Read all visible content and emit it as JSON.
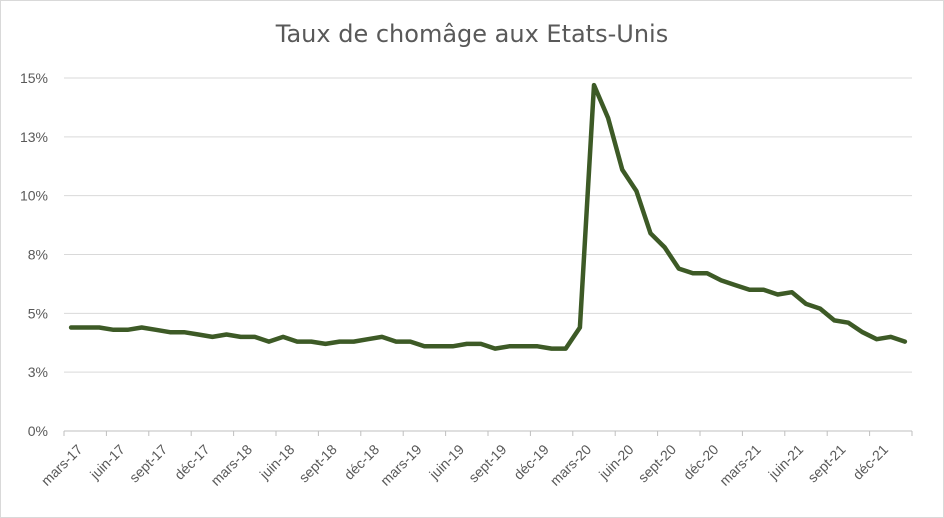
{
  "chart_data": {
    "type": "line",
    "title": "Taux de chomâge aux Etats-Unis",
    "xlabel": "",
    "ylabel": "",
    "ylim": [
      0,
      15
    ],
    "y_ticks": [
      "0%",
      "3%",
      "5%",
      "8%",
      "10%",
      "13%",
      "15%"
    ],
    "y_tick_values": [
      0,
      2.5,
      5,
      7.5,
      10,
      12.5,
      15
    ],
    "x_tick_labels": [
      "mars-17",
      "juin-17",
      "sept-17",
      "déc-17",
      "mars-18",
      "juin-18",
      "sept-18",
      "déc-18",
      "mars-19",
      "juin-19",
      "sept-19",
      "déc-19",
      "mars-20",
      "juin-20",
      "sept-20",
      "déc-20",
      "mars-21",
      "juin-21",
      "sept-21",
      "déc-21"
    ],
    "grid": true,
    "line_color": "#3d5a26",
    "series": [
      {
        "name": "",
        "values": [
          4.4,
          4.4,
          4.4,
          4.3,
          4.3,
          4.4,
          4.3,
          4.2,
          4.2,
          4.1,
          4.0,
          4.1,
          4.0,
          4.0,
          3.8,
          4.0,
          3.8,
          3.8,
          3.7,
          3.8,
          3.8,
          3.9,
          4.0,
          3.8,
          3.8,
          3.6,
          3.6,
          3.6,
          3.7,
          3.7,
          3.5,
          3.6,
          3.6,
          3.6,
          3.5,
          3.5,
          4.4,
          14.7,
          13.3,
          11.1,
          10.2,
          8.4,
          7.8,
          6.9,
          6.7,
          6.7,
          6.4,
          6.2,
          6.0,
          6.0,
          5.8,
          5.9,
          5.4,
          5.2,
          4.7,
          4.6,
          4.2,
          3.9,
          4.0,
          3.8
        ]
      }
    ]
  }
}
